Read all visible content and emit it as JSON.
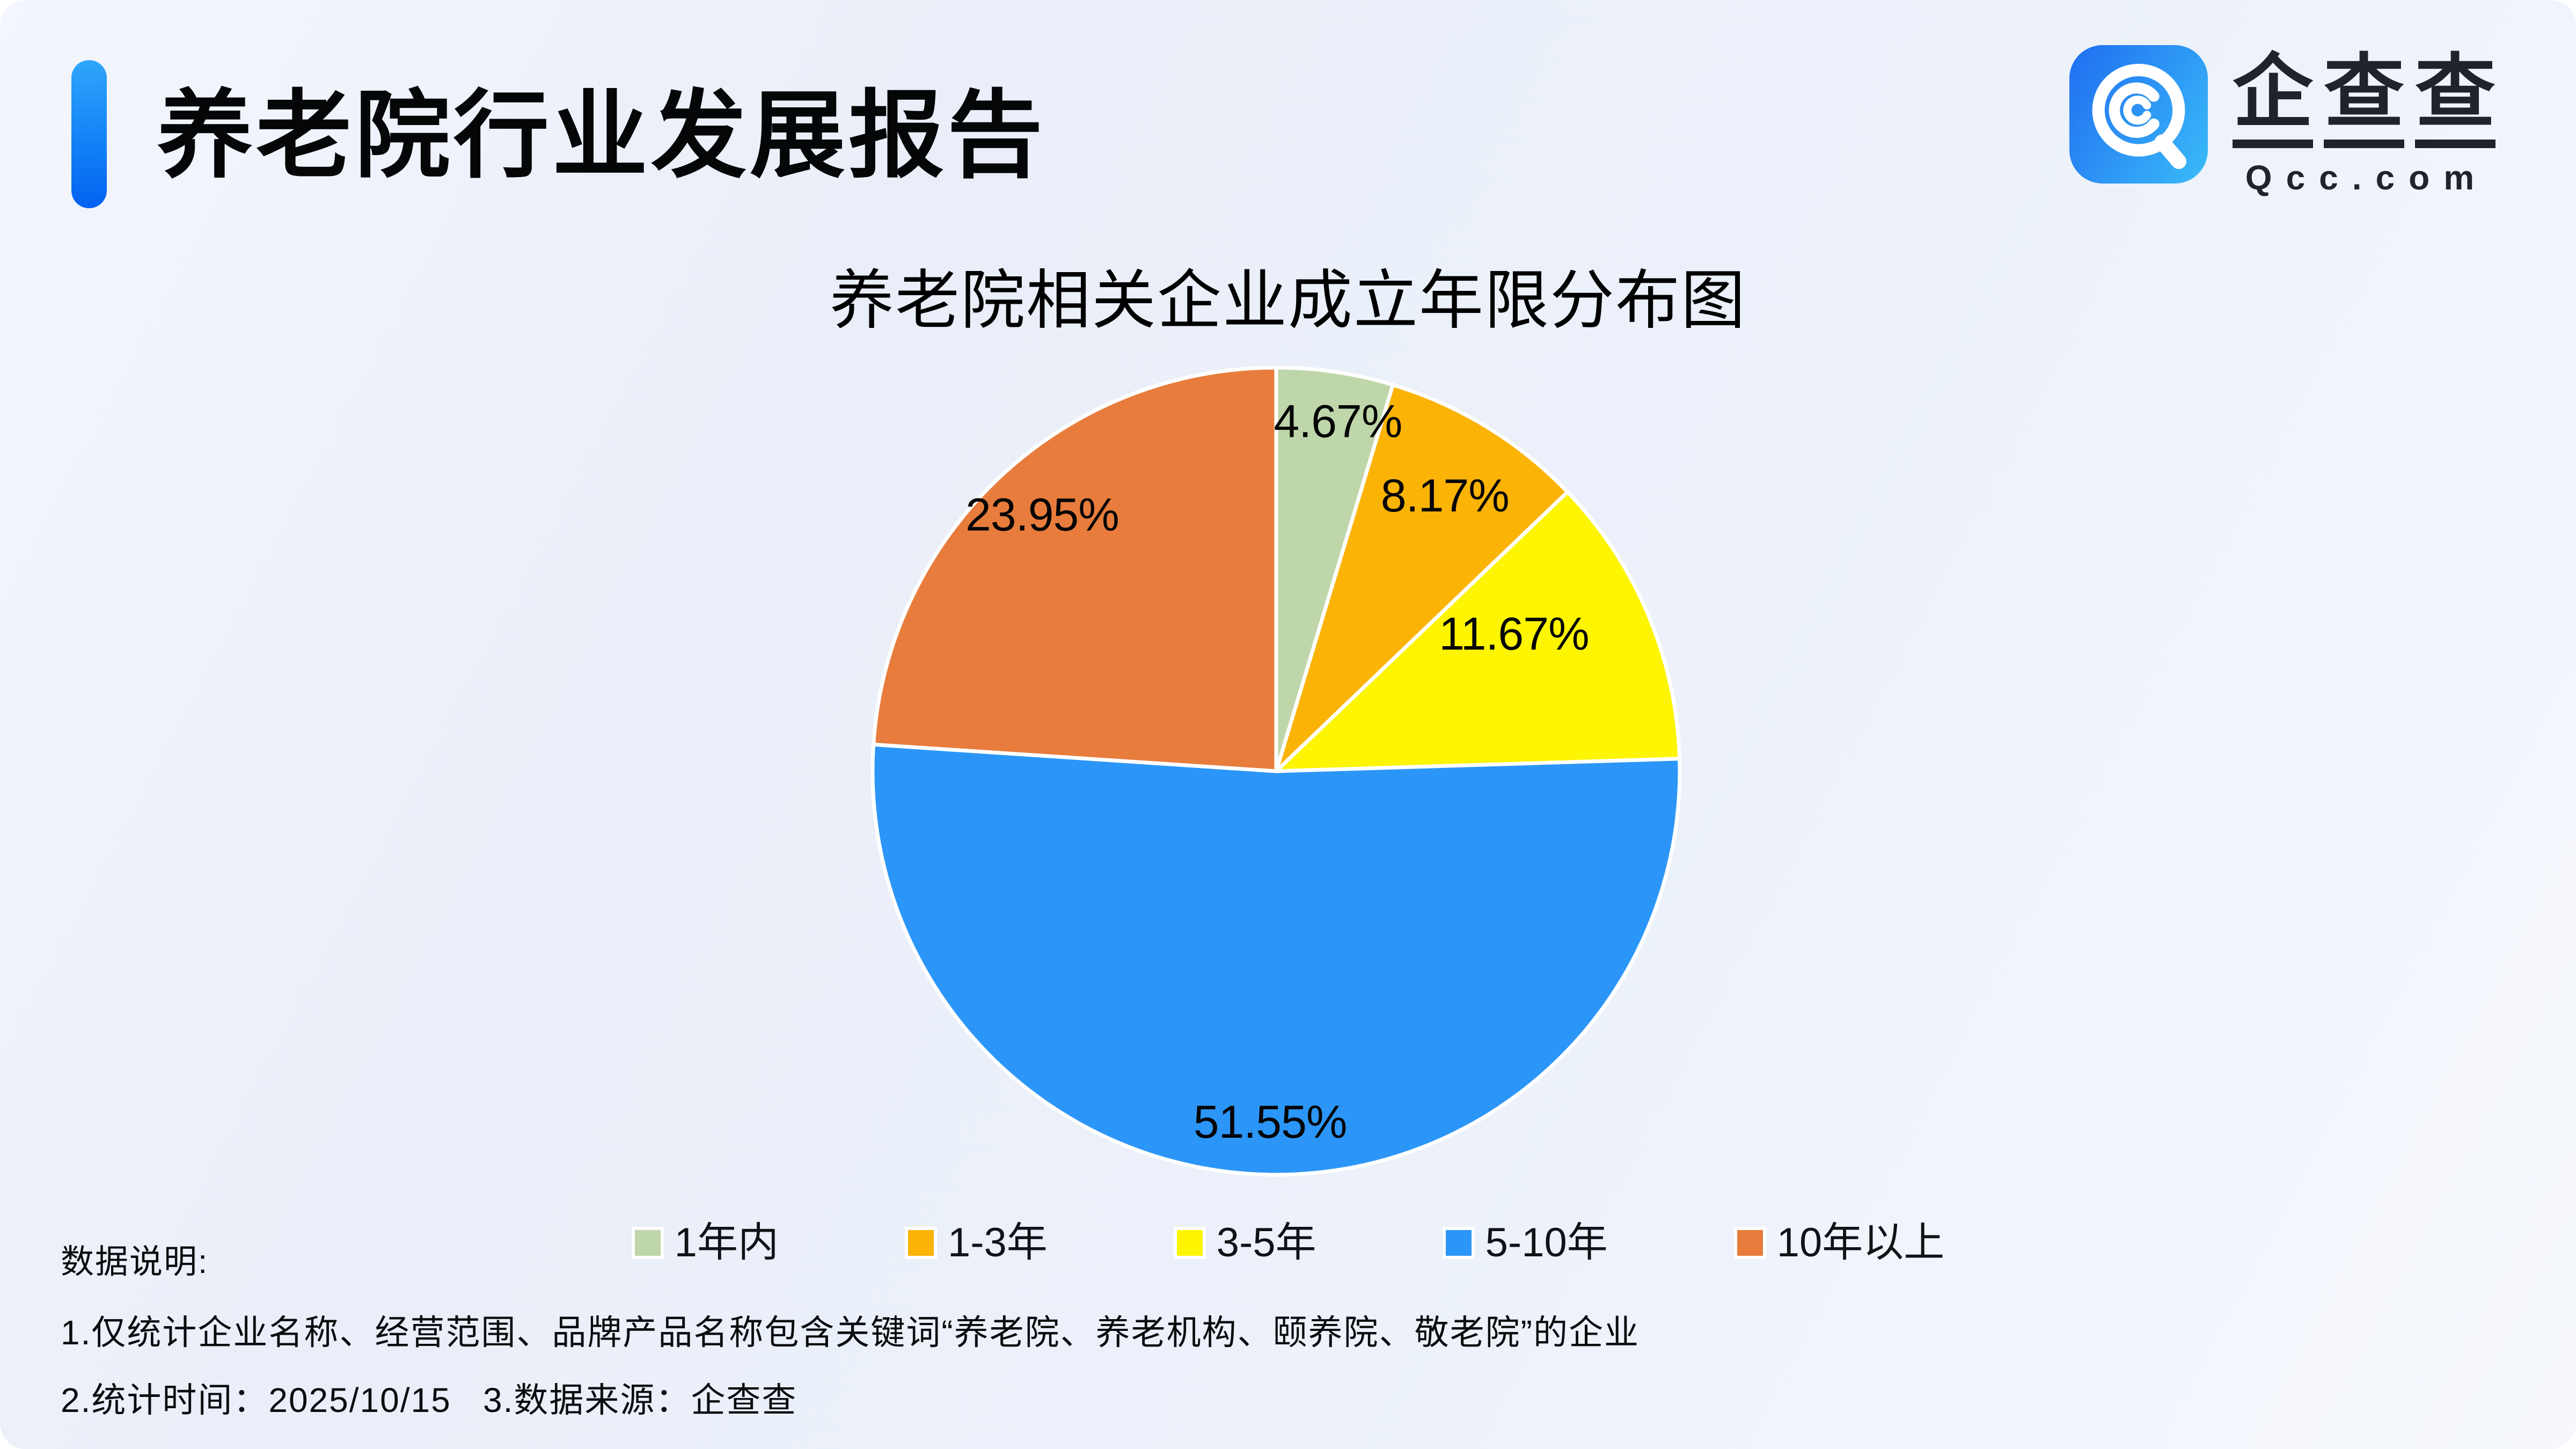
{
  "header": {
    "title": "养老院行业发展报告"
  },
  "logo": {
    "brand_chars": [
      "企",
      "查",
      "查"
    ],
    "domain": "Qcc.com",
    "icon": "qcc-spiral-q-icon",
    "icon_gradient": [
      "#2273f1",
      "#38b6f8"
    ]
  },
  "chart_data": {
    "type": "pie",
    "title": "养老院相关企业成立年限分布图",
    "categories": [
      "1年内",
      "1-3年",
      "3-5年",
      "5-10年",
      "10年以上"
    ],
    "values": [
      4.67,
      8.17,
      11.67,
      51.55,
      23.95
    ],
    "labels": [
      "4.67%",
      "8.17%",
      "11.67%",
      "51.55%",
      "23.95%"
    ],
    "colors": [
      "#bed6aa",
      "#fbb306",
      "#fdf501",
      "#2b96f8",
      "#e87c3c"
    ],
    "unit": "%",
    "start_angle_deg": 0,
    "clockwise": true,
    "grid": false,
    "legend_position": "bottom",
    "label_position": "inside",
    "label_angles_deg": [
      10,
      31.5,
      60,
      181,
      317.6
    ],
    "label_radius_frac": [
      0.88,
      0.8,
      0.68,
      0.87,
      0.86
    ]
  },
  "notes": {
    "heading": "数据说明:",
    "line1": "1.仅统计企业名称、经营范围、品牌产品名称包含关键词“养老院、养老机构、颐养院、敬老院”的企业",
    "line2": "2.统计时间：2025/10/15   3.数据来源：企查查"
  },
  "theme": {
    "background": "#edf1f9",
    "accent_bar_gradient": [
      "#2fa6fb",
      "#0462f1"
    ],
    "text_color": "#0b0c0e"
  }
}
